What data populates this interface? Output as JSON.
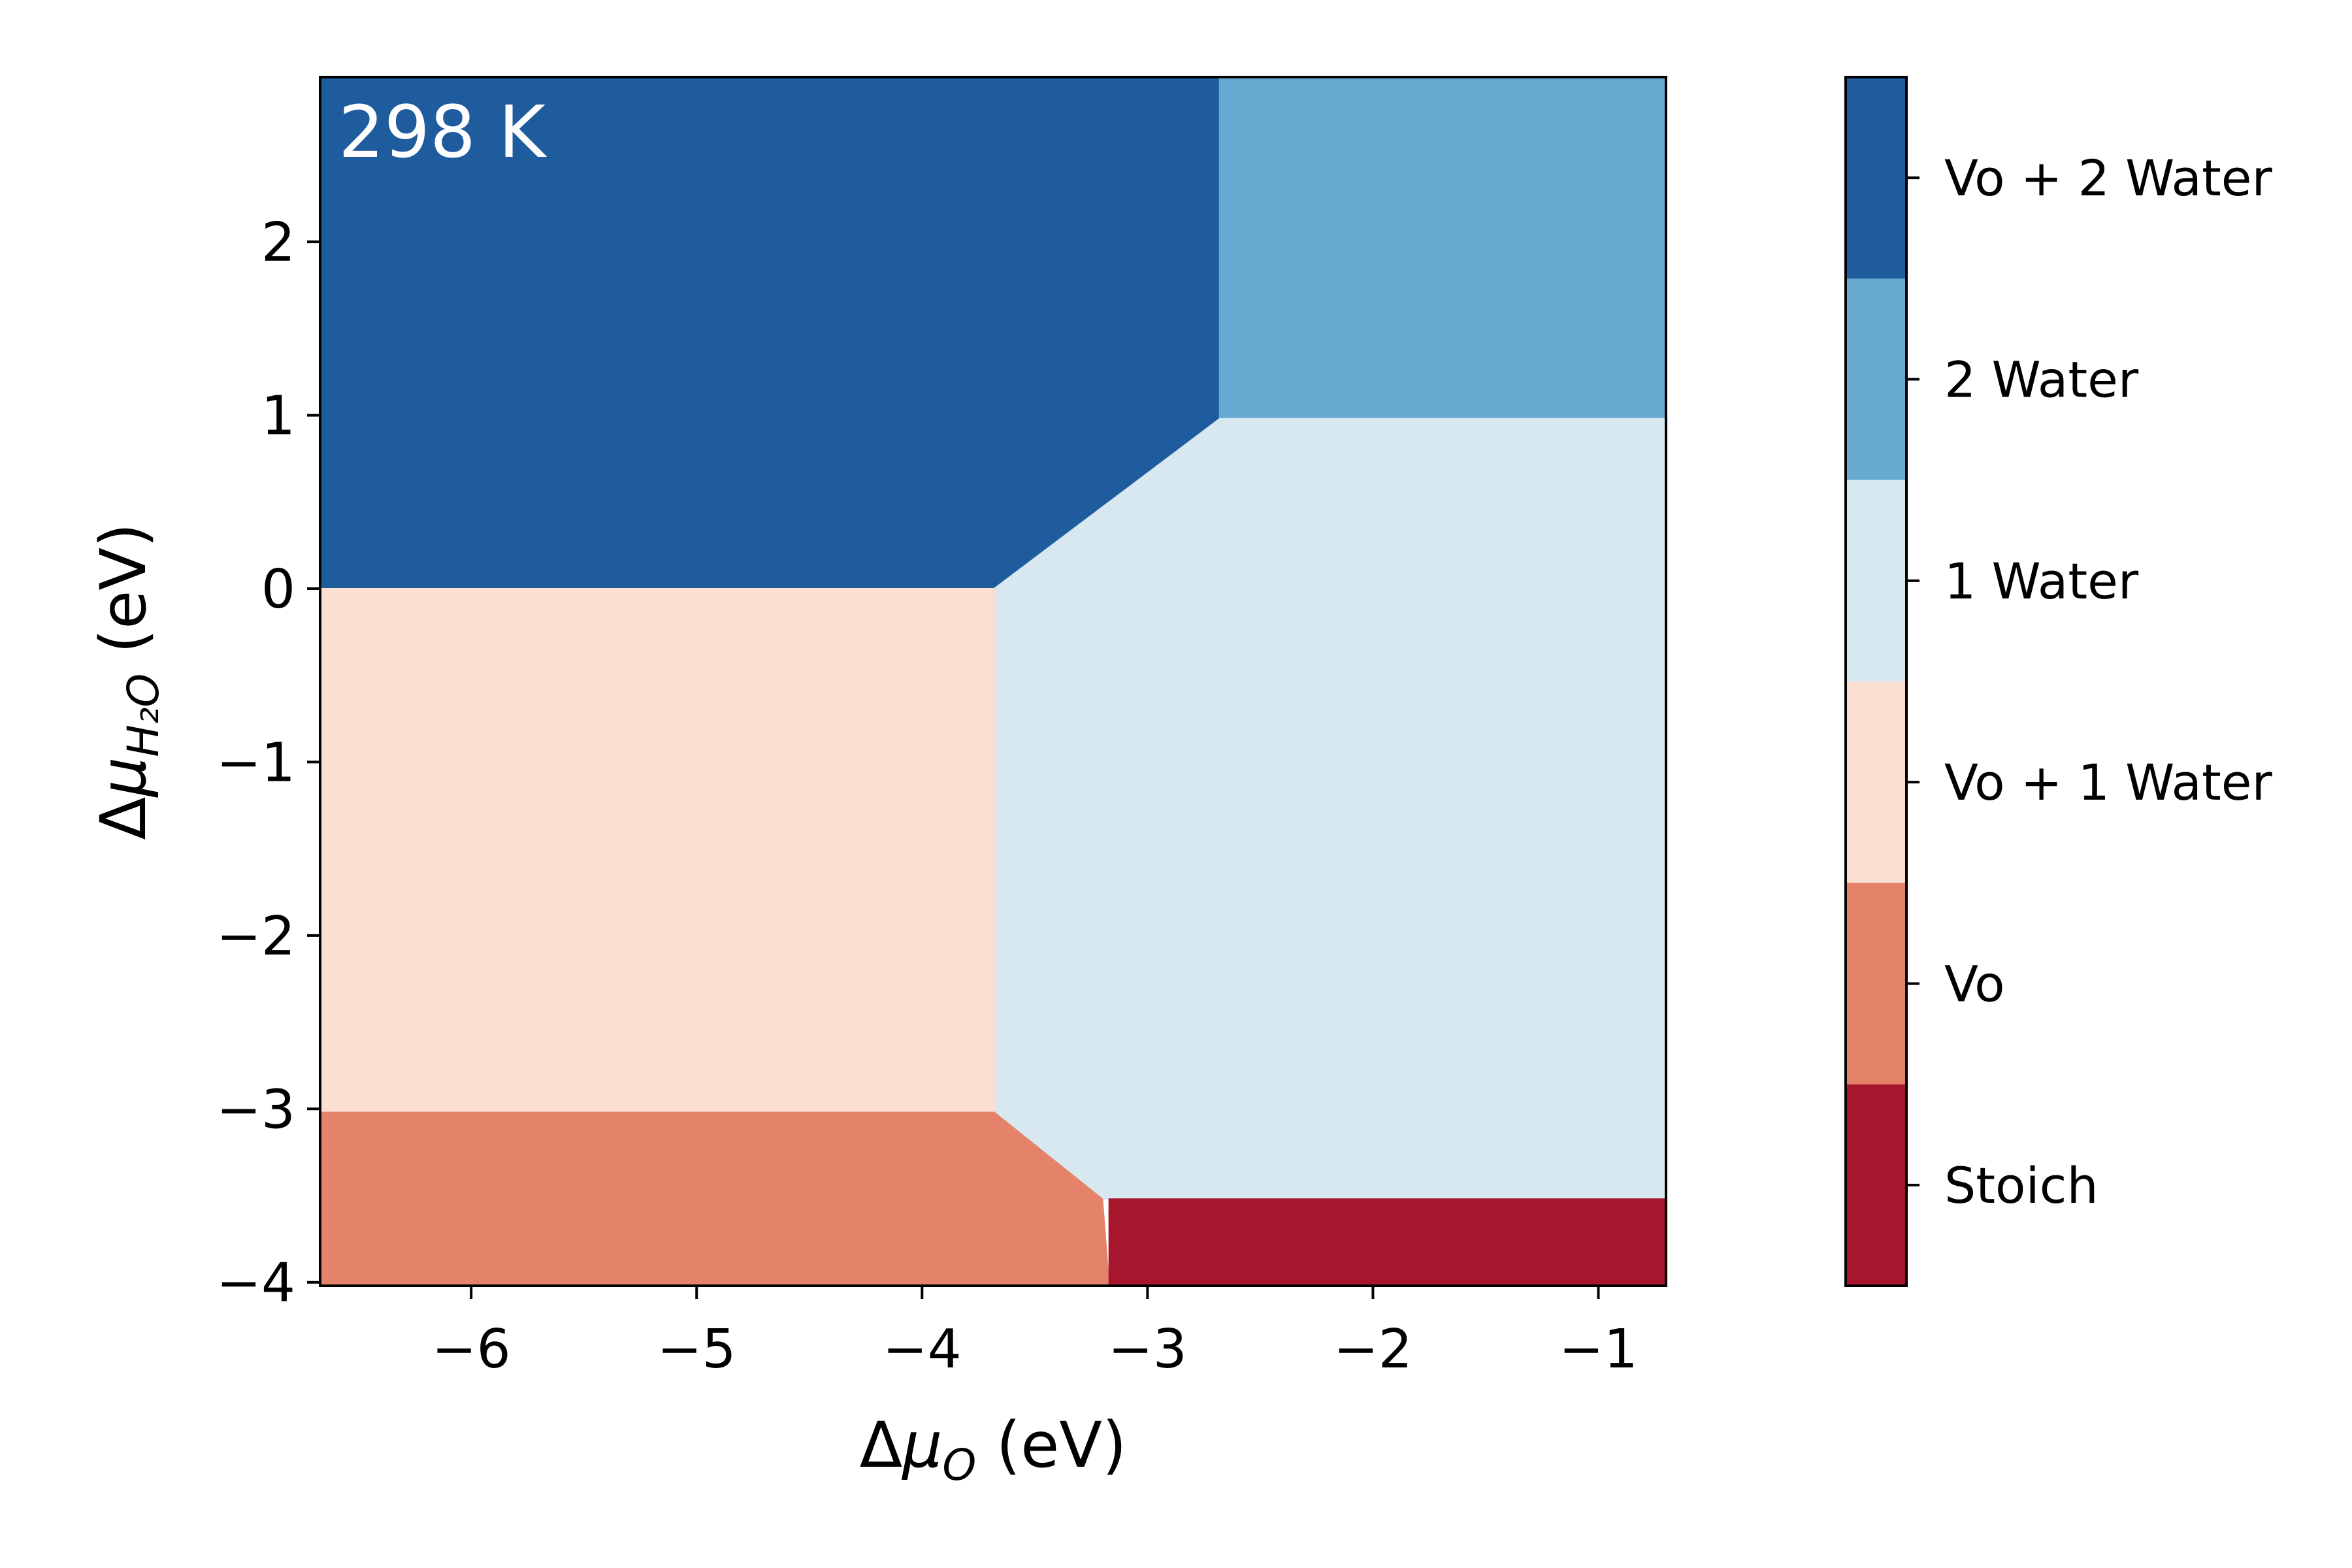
{
  "chart_data": {
    "type": "heatmap",
    "annotation": "298 K",
    "xlabel": {
      "main": "Δμ",
      "sub": "O",
      "unit": " (eV)"
    },
    "ylabel": {
      "main": "Δμ",
      "sub": "H₂O",
      "unit": " (eV)"
    },
    "xlim": [
      -6.67,
      -0.7
    ],
    "ylim": [
      -4.02,
      2.95
    ],
    "xticks": [
      -6,
      -5,
      -4,
      -3,
      -2,
      -1
    ],
    "xtick_labels": [
      "−6",
      "−5",
      "−4",
      "−3",
      "−2",
      "−1"
    ],
    "yticks": [
      -4,
      -3,
      -2,
      -1,
      0,
      1,
      2
    ],
    "ytick_labels": [
      "−4",
      "−3",
      "−2",
      "−1",
      "0",
      "1",
      "2"
    ],
    "phases": [
      {
        "label": "Vo + 2 Water",
        "color": "#1f5c9e",
        "polygon": [
          [
            -6.67,
            0.0
          ],
          [
            -3.68,
            0.0
          ],
          [
            -2.68,
            0.98
          ],
          [
            -2.68,
            2.95
          ],
          [
            -6.67,
            2.95
          ]
        ]
      },
      {
        "label": "2 Water",
        "color": "#67aad1",
        "polygon": [
          [
            -2.68,
            0.98
          ],
          [
            -0.7,
            0.98
          ],
          [
            -0.7,
            2.95
          ],
          [
            -2.68,
            2.95
          ]
        ]
      },
      {
        "label": "1 Water",
        "color": "#d8e8f1",
        "polygon": [
          [
            -3.68,
            0.0
          ],
          [
            -2.68,
            0.98
          ],
          [
            -0.7,
            0.98
          ],
          [
            -0.7,
            -3.52
          ],
          [
            -3.2,
            -3.52
          ],
          [
            -3.68,
            -3.02
          ]
        ]
      },
      {
        "label": "Vo + 1 Water",
        "color": "#fbdfd1",
        "polygon": [
          [
            -6.67,
            0.0
          ],
          [
            -3.68,
            0.0
          ],
          [
            -3.68,
            -3.02
          ],
          [
            -6.67,
            -3.02
          ]
        ]
      },
      {
        "label": "Vo",
        "color": "#e4836a",
        "polygon": [
          [
            -6.67,
            -3.02
          ],
          [
            -3.68,
            -3.02
          ],
          [
            -3.2,
            -3.52
          ],
          [
            -3.17,
            -4.02
          ],
          [
            -6.67,
            -4.02
          ]
        ]
      },
      {
        "label": "Stoich",
        "color": "#a6162d",
        "polygon": [
          [
            -3.17,
            -3.52
          ],
          [
            -0.7,
            -3.52
          ],
          [
            -0.7,
            -4.02
          ],
          [
            -3.17,
            -4.02
          ]
        ]
      }
    ],
    "colorbar": {
      "labels": [
        "Vo + 2 Water",
        "2 Water",
        "1 Water",
        "Vo + 1 Water",
        "Vo",
        "Stoich"
      ],
      "colors": [
        "#1f5c9e",
        "#67aad1",
        "#d8e8f1",
        "#fbdfd1",
        "#e4836a",
        "#a6162d"
      ]
    }
  }
}
